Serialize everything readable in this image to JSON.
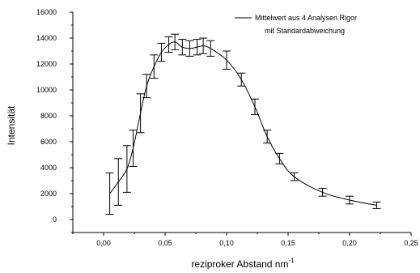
{
  "chart_data": {
    "type": "line",
    "xlabel": "reziproker Abstand nm",
    "xlabel_superscript": "-1",
    "ylabel": "Intensität",
    "xlim": [
      -0.025,
      0.25
    ],
    "ylim": [
      -1000,
      16000
    ],
    "x_ticks": [
      "0,00",
      "0,05",
      "0,10",
      "0,15",
      "0,20",
      "0,25"
    ],
    "x_tick_values": [
      0,
      0.05,
      0.1,
      0.15,
      0.2,
      0.25
    ],
    "y_ticks": [
      "0",
      "2000",
      "4000",
      "6000",
      "8000",
      "10000",
      "12000",
      "14000",
      "16000"
    ],
    "y_tick_values": [
      0,
      2000,
      4000,
      6000,
      8000,
      10000,
      12000,
      14000,
      16000
    ],
    "grid": false,
    "legend": {
      "position": "top-right",
      "lines": [
        "Mittelwert aus 4 Analysen Rigor",
        "mit Standardabweichung"
      ]
    },
    "series": [
      {
        "name": "Mittelwert aus 4 Analysen Rigor mit Standardabweichung",
        "x": [
          0.005,
          0.012,
          0.019,
          0.024,
          0.03,
          0.035,
          0.041,
          0.047,
          0.053,
          0.058,
          0.064,
          0.07,
          0.076,
          0.081,
          0.087,
          0.1,
          0.112,
          0.123,
          0.133,
          0.143,
          0.155,
          0.178,
          0.2,
          0.222
        ],
        "y": [
          2000,
          2900,
          3900,
          5500,
          8200,
          10300,
          11800,
          12900,
          13500,
          13700,
          13300,
          13200,
          13300,
          13400,
          13200,
          12300,
          10800,
          8700,
          6400,
          4700,
          3300,
          2100,
          1500,
          1100
        ],
        "err": [
          1600,
          1800,
          1800,
          1400,
          1500,
          900,
          900,
          700,
          600,
          600,
          600,
          600,
          600,
          600,
          600,
          700,
          500,
          600,
          500,
          400,
          300,
          300,
          300,
          250
        ]
      }
    ]
  }
}
